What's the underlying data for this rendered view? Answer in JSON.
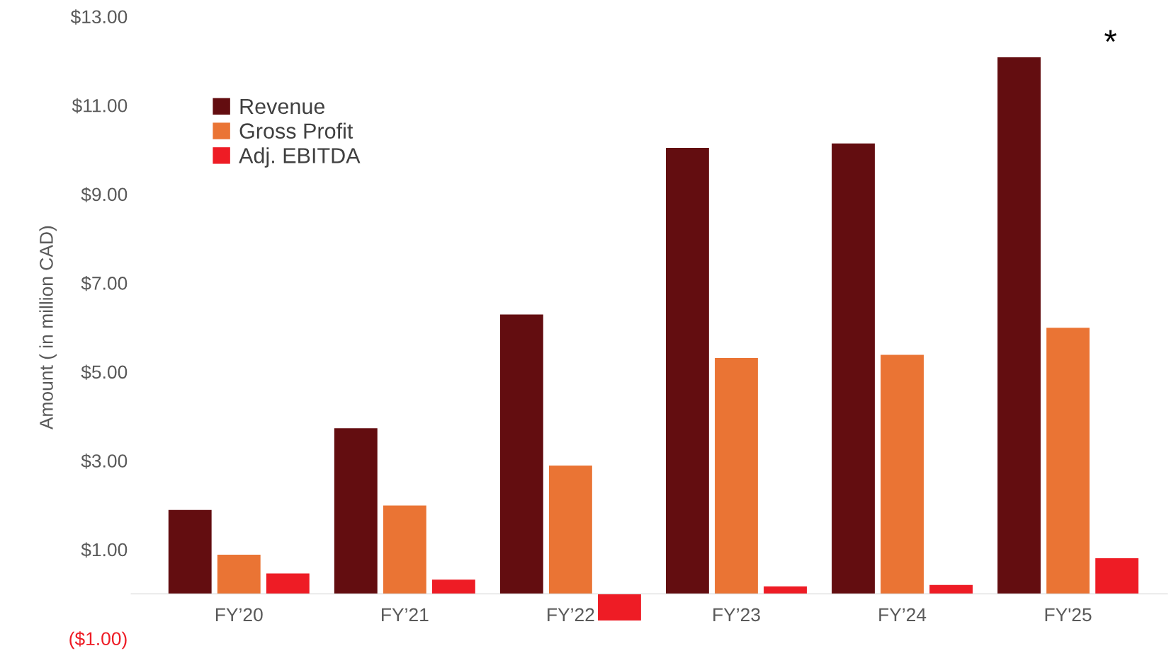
{
  "chart_data": {
    "type": "bar",
    "ylabel": "Amount ( in million CAD)",
    "categories": [
      "FY’20",
      "FY’21",
      "FY’22",
      "FY’23",
      "FY’24",
      "FY'25"
    ],
    "series": [
      {
        "name": "Revenue",
        "color": "#630d10",
        "values": [
          1.89,
          3.73,
          6.29,
          10.04,
          10.14,
          12.08
        ]
      },
      {
        "name": "Gross Profit",
        "color": "#ea7434",
        "values": [
          0.88,
          1.99,
          2.89,
          5.31,
          5.38,
          5.99
        ]
      },
      {
        "name": "Adj. EBITDA",
        "color": "#ee1c25",
        "values": [
          0.46,
          0.32,
          -0.6,
          0.17,
          0.2,
          0.8
        ]
      }
    ],
    "ylim": [
      -1,
      13
    ],
    "yticks": [
      {
        "value": -1,
        "label": "($1.00)"
      },
      {
        "value": 1,
        "label": "$1.00"
      },
      {
        "value": 3,
        "label": "$3.00"
      },
      {
        "value": 5,
        "label": "$5.00"
      },
      {
        "value": 7,
        "label": "$7.00"
      },
      {
        "value": 9,
        "label": "$9.00"
      },
      {
        "value": 11,
        "label": "$11.00"
      },
      {
        "value": 13,
        "label": "$13.00"
      }
    ],
    "annotations": [
      "*"
    ],
    "legend": "top left",
    "grid": false
  }
}
